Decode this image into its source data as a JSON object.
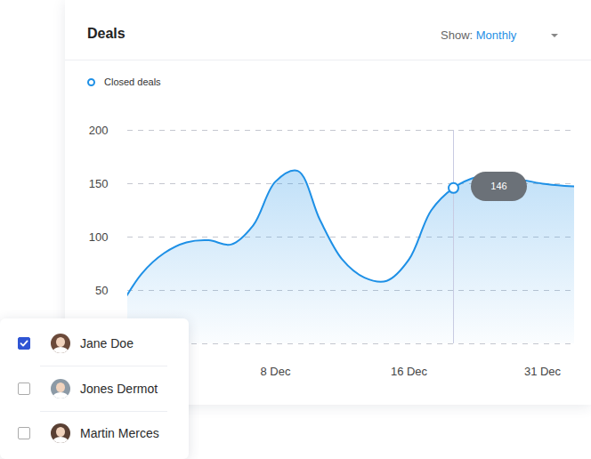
{
  "chart_data": {
    "type": "area",
    "title": "Deals",
    "categories": [
      null,
      null,
      null,
      null,
      null,
      null,
      null,
      "8 Dec",
      null,
      null,
      null,
      null,
      null,
      "16 Dec",
      null,
      null,
      null,
      null,
      null,
      "31 Dec",
      null,
      null
    ],
    "series": [
      {
        "name": "Closed deals",
        "color": "#1e90e6",
        "values": [
          34,
          66,
          85,
          95,
          97,
          93,
          111,
          152,
          162,
          116,
          79,
          62,
          59,
          79,
          125,
          146,
          156,
          158,
          154,
          150,
          148,
          147
        ]
      }
    ],
    "ylim": [
      0,
      200
    ],
    "yticks": [
      50,
      100,
      150,
      200
    ],
    "grid": true,
    "legend": "top-left",
    "annotations": [
      {
        "point": 15,
        "value": 146,
        "text": "146"
      }
    ]
  },
  "controls": {
    "label": "Show:",
    "value": "Monthly"
  },
  "users": [
    {
      "name": "Jane Doe",
      "checked": true
    },
    {
      "name": "Jones Dermot",
      "checked": false
    },
    {
      "name": "Martin Merces",
      "checked": false
    }
  ]
}
